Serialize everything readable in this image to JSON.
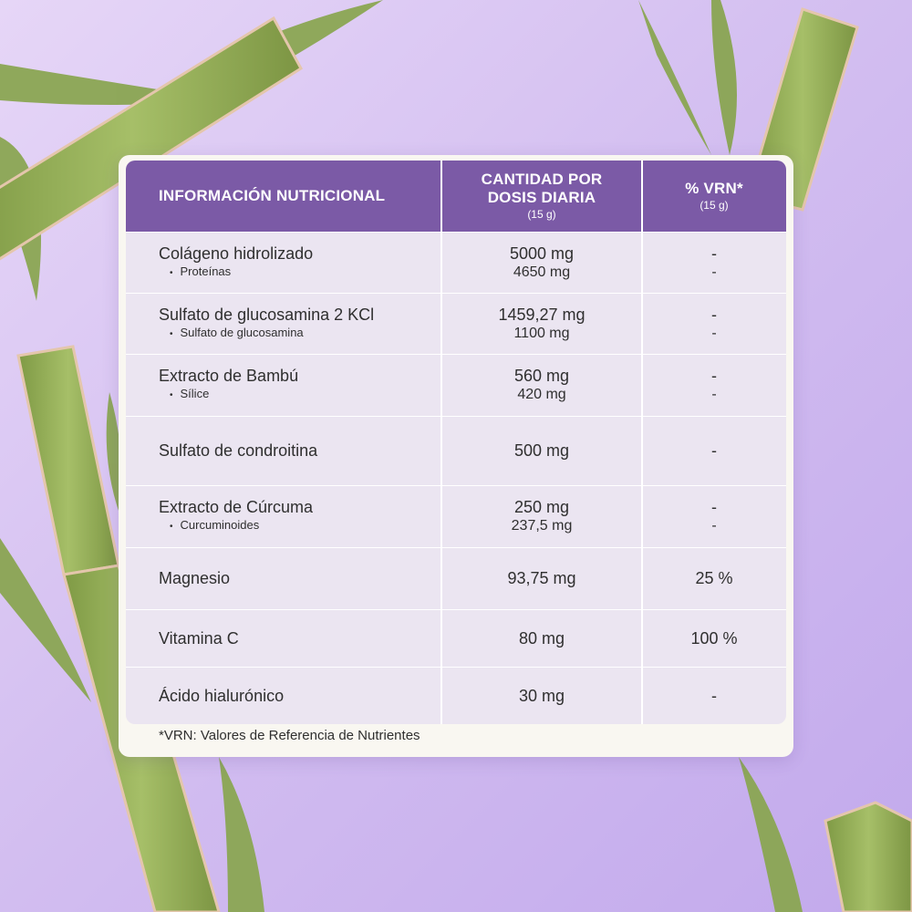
{
  "colors": {
    "header_bg": "#7b5aa6",
    "table_bg": "#ebe5f1",
    "card_bg": "#f9f7f1",
    "background": "#d2bdf0",
    "bamboo": "#93ad55"
  },
  "header": {
    "col1": "INFORMACIÓN NUTRICIONAL",
    "col2_line1": "CANTIDAD POR",
    "col2_line2": "DOSIS DIARIA",
    "col2_sub": "(15 g)",
    "col3": "% VRN*",
    "col3_sub": "(15 g)"
  },
  "rows": [
    {
      "name": "Colágeno hidrolizado",
      "sub": "Proteínas",
      "amount": "5000 mg",
      "sub_amount": "4650 mg",
      "vrn": "-",
      "sub_vrn": "-"
    },
    {
      "name": "Sulfato de glucosamina 2 KCl",
      "sub": "Sulfato de glucosamina",
      "amount": "1459,27 mg",
      "sub_amount": "1100 mg",
      "vrn": "-",
      "sub_vrn": "-"
    },
    {
      "name": "Extracto de Bambú",
      "sub": "Sílice",
      "amount": "560 mg",
      "sub_amount": "420 mg",
      "vrn": "-",
      "sub_vrn": "-"
    },
    {
      "name": "Sulfato de condroitina",
      "amount": "500 mg",
      "vrn": "-"
    },
    {
      "name": "Extracto de Cúrcuma",
      "sub": "Curcuminoides",
      "amount": "250 mg",
      "sub_amount": "237,5 mg",
      "vrn": "-",
      "sub_vrn": "-"
    },
    {
      "name": "Magnesio",
      "amount": "93,75 mg",
      "vrn": "25 %"
    },
    {
      "name": "Vitamina C",
      "amount": "80 mg",
      "vrn": "100 %"
    },
    {
      "name": "Ácido hialurónico",
      "amount": "30 mg",
      "vrn": "-"
    }
  ],
  "footnote": "*VRN: Valores de Referencia de Nutrientes"
}
